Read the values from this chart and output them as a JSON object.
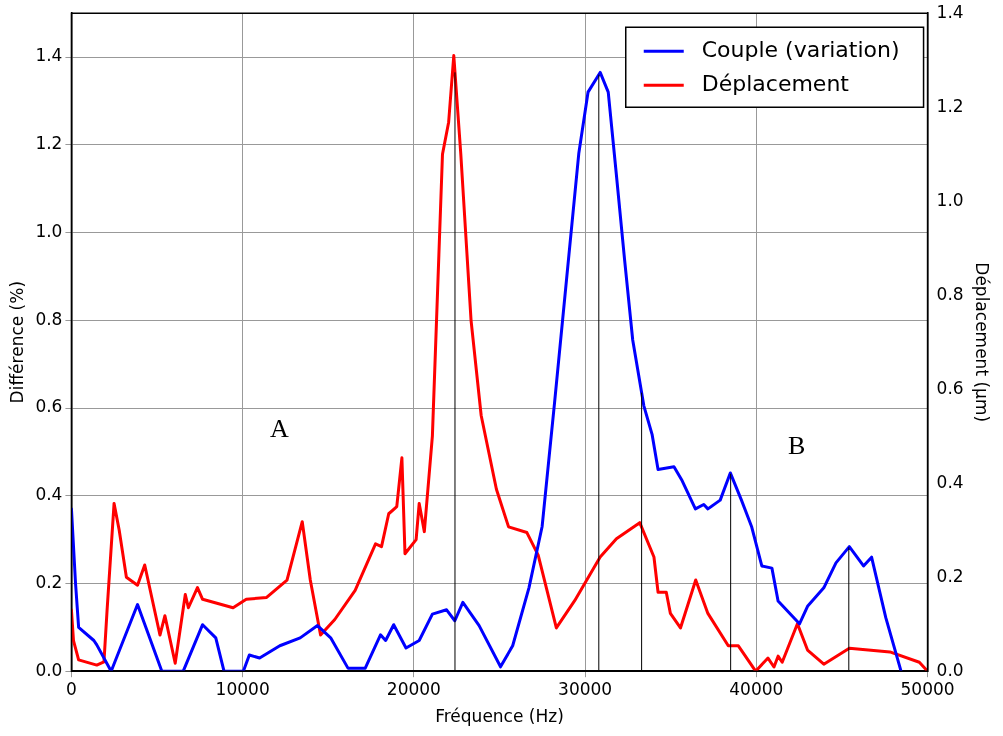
{
  "chart_data": {
    "type": "line",
    "xlabel": "Fréquence (Hz)",
    "ylabel": "Différence (%)",
    "y2label": "Déplacement (μm)",
    "xlim": [
      0,
      50000
    ],
    "xticks": [
      0,
      10000,
      20000,
      30000,
      40000,
      50000
    ],
    "ylim": [
      0,
      1.5
    ],
    "yticks": [
      {
        "value": 0,
        "label": "0.0"
      },
      {
        "value": 0.2,
        "label": "0.2"
      },
      {
        "value": 0.4,
        "label": "0.4"
      },
      {
        "value": 0.6,
        "label": "0.6"
      },
      {
        "value": 0.8,
        "label": "0.8"
      },
      {
        "value": 1.0,
        "label": "1.0"
      },
      {
        "value": 1.2,
        "label": "1.2"
      },
      {
        "value": 1.4,
        "label": "1.4"
      }
    ],
    "y2lim": [
      0,
      1.4
    ],
    "y2ticks": [
      {
        "value": 0,
        "label": "0.0"
      },
      {
        "value": 0.2,
        "label": "0.2"
      },
      {
        "value": 0.4,
        "label": "0.4"
      },
      {
        "value": 0.6,
        "label": "0.6"
      },
      {
        "value": 0.8,
        "label": "0.8"
      },
      {
        "value": 1.0,
        "label": "1.0"
      },
      {
        "value": 1.2,
        "label": "1.2"
      },
      {
        "value": 1.4,
        "label": "1.4"
      }
    ],
    "grid": true,
    "legend": "top right",
    "marker": "none",
    "line_style": "solid",
    "series": [
      {
        "name": "Couple (variation)",
        "color": "#0000ff",
        "x": [
          0,
          240,
          420,
          1310,
          1480,
          2320,
          3860,
          5280,
          6530,
          7660,
          8430,
          8910,
          10040,
          10390,
          10990,
          12170,
          13360,
          14370,
          15140,
          16150,
          17160,
          18050,
          18350,
          18820,
          19540,
          20310,
          21080,
          21910,
          22390,
          22860,
          23810,
          25060,
          25770,
          26720,
          27490,
          28210,
          28920,
          29630,
          30170,
          30880,
          31350,
          31830,
          32300,
          32780,
          33430,
          33910,
          34260,
          35190,
          35670,
          36440,
          36930,
          37170,
          37890,
          38480,
          39130,
          39720,
          40320,
          40910,
          41270,
          42520,
          42990,
          43940,
          44650,
          45430,
          46260,
          46730,
          47560,
          48450
        ],
        "values": [
          0.37,
          0.2,
          0.1,
          0.07,
          0.06,
          0,
          0.152,
          0,
          0,
          0.106,
          0.076,
          0,
          0,
          0.037,
          0.03,
          0.058,
          0.076,
          0.104,
          0.076,
          0.007,
          0.007,
          0.083,
          0.07,
          0.106,
          0.053,
          0.07,
          0.13,
          0.14,
          0.115,
          0.157,
          0.104,
          0.01,
          0.058,
          0.19,
          0.33,
          0.61,
          0.895,
          1.18,
          1.32,
          1.365,
          1.32,
          1.13,
          0.94,
          0.755,
          0.605,
          0.54,
          0.46,
          0.466,
          0.434,
          0.37,
          0.38,
          0.37,
          0.39,
          0.452,
          0.39,
          0.33,
          0.24,
          0.235,
          0.16,
          0.108,
          0.148,
          0.19,
          0.247,
          0.284,
          0.24,
          0.26,
          0.122,
          0
        ]
      },
      {
        "name": "Déplacement",
        "color": "#ff0000",
        "axis": "y2",
        "x": [
          0,
          120,
          420,
          1480,
          1900,
          2080,
          2490,
          2790,
          3210,
          3860,
          4280,
          5170,
          5460,
          6060,
          6650,
          6830,
          7360,
          7660,
          9440,
          10210,
          11400,
          12590,
          13480,
          13950,
          14550,
          15380,
          16570,
          17760,
          18110,
          18530,
          19000,
          19300,
          19480,
          20130,
          20310,
          20610,
          21080,
          21670,
          22030,
          22330,
          22740,
          23340,
          23930,
          24820,
          25530,
          26600,
          27260,
          28320,
          29390,
          30880,
          31830,
          33190,
          34020,
          34260,
          34740,
          34980,
          35570,
          36460,
          37170,
          38360,
          38950,
          39960,
          40680,
          41030,
          41270,
          41510,
          42400,
          42990,
          43940,
          45430,
          47800,
          49520,
          50000
        ],
        "values": [
          0.13,
          0.065,
          0.024,
          0.013,
          0.02,
          0.129,
          0.357,
          0.3,
          0.2,
          0.183,
          0.226,
          0.077,
          0.118,
          0.017,
          0.163,
          0.135,
          0.178,
          0.153,
          0.135,
          0.153,
          0.157,
          0.194,
          0.318,
          0.194,
          0.077,
          0.11,
          0.172,
          0.271,
          0.265,
          0.335,
          0.35,
          0.454,
          0.25,
          0.28,
          0.357,
          0.297,
          0.5,
          1.1,
          1.168,
          1.31,
          1.1,
          0.746,
          0.544,
          0.387,
          0.307,
          0.295,
          0.247,
          0.092,
          0.15,
          0.243,
          0.282,
          0.316,
          0.243,
          0.168,
          0.168,
          0.123,
          0.092,
          0.194,
          0.123,
          0.054,
          0.054,
          0,
          0.028,
          0.009,
          0.032,
          0.019,
          0.101,
          0.045,
          0.015,
          0.049,
          0.041,
          0.019,
          0
        ]
      }
    ],
    "ref_lines": [
      {
        "axis": "x",
        "value": 22400,
        "color": "#000000"
      },
      {
        "axis": "x",
        "value": 30800,
        "color": "#000000"
      },
      {
        "axis": "x",
        "value": 33300,
        "color": "#000000"
      },
      {
        "axis": "x",
        "value": 38500,
        "color": "#000000"
      },
      {
        "axis": "x",
        "value": 45400,
        "color": "#000000"
      }
    ],
    "annotations": [
      "A",
      "B"
    ]
  }
}
